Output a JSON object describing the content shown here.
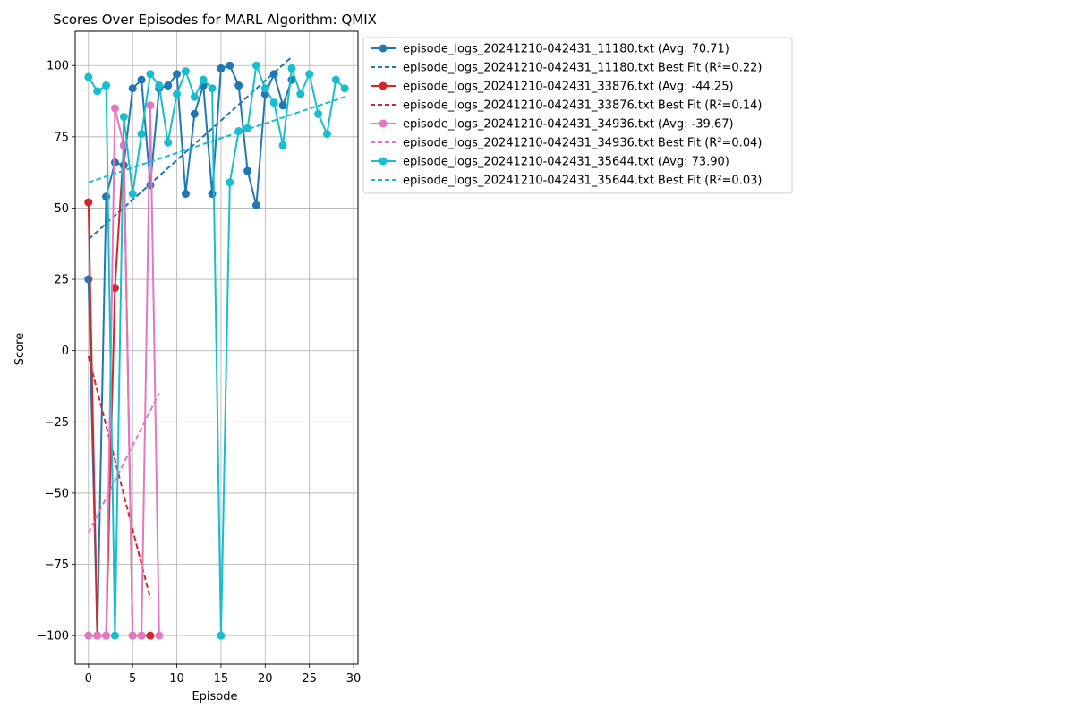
{
  "chart_data": {
    "type": "line",
    "title": "Scores Over Episodes for MARL Algorithm: QMIX",
    "xlabel": "Episode",
    "ylabel": "Score",
    "xlim": [
      -1.5,
      30.5
    ],
    "ylim": [
      -110,
      112
    ],
    "xticks": [
      0,
      5,
      10,
      15,
      20,
      25,
      30
    ],
    "yticks": [
      -100,
      -75,
      -50,
      -25,
      0,
      25,
      50,
      75,
      100
    ],
    "grid": true,
    "legend_position": "outside top-right",
    "series": [
      {
        "name": "episode_logs_20241210-042431_11180.txt (Avg: 70.71)",
        "color": "#1f77b4",
        "x": [
          0,
          1,
          2,
          3,
          4,
          5,
          6,
          7,
          8,
          9,
          10,
          11,
          12,
          13,
          14,
          15,
          16,
          17,
          18,
          19,
          20,
          21,
          22,
          23
        ],
        "y": [
          25,
          -100,
          54,
          66,
          65,
          92,
          95,
          58,
          92,
          93,
          97,
          55,
          83,
          93,
          55,
          99,
          100,
          93,
          63,
          51,
          90,
          97,
          86,
          95
        ],
        "fit": {
          "label": "episode_logs_20241210-042431_11180.txt Best Fit (R²=0.22)",
          "x": [
            0,
            23
          ],
          "y": [
            39,
            103
          ]
        }
      },
      {
        "name": "episode_logs_20241210-042431_33876.txt (Avg: -44.25)",
        "color": "#d62728",
        "x": [
          0,
          1,
          2,
          3,
          4,
          5,
          6,
          7
        ],
        "y": [
          52,
          -100,
          -100,
          22,
          72,
          -100,
          -100,
          -100
        ],
        "fit": {
          "label": "episode_logs_20241210-042431_33876.txt Best Fit (R²=0.14)",
          "x": [
            0,
            7
          ],
          "y": [
            -2,
            -87
          ]
        }
      },
      {
        "name": "episode_logs_20241210-042431_34936.txt (Avg: -39.67)",
        "color": "#e377c2",
        "x": [
          0,
          1,
          2,
          3,
          4,
          5,
          6,
          7,
          8
        ],
        "y": [
          -100,
          -100,
          -100,
          85,
          72,
          -100,
          -100,
          86,
          -100
        ],
        "fit": {
          "label": "episode_logs_20241210-042431_34936.txt Best Fit (R²=0.04)",
          "x": [
            0,
            8
          ],
          "y": [
            -64,
            -15
          ]
        }
      },
      {
        "name": "episode_logs_20241210-042431_35644.txt (Avg: 73.90)",
        "color": "#17becf",
        "x": [
          0,
          1,
          2,
          3,
          4,
          5,
          6,
          7,
          8,
          9,
          10,
          11,
          12,
          13,
          14,
          15,
          16,
          17,
          18,
          19,
          20,
          21,
          22,
          23,
          24,
          25,
          26,
          27,
          28,
          29
        ],
        "y": [
          96,
          91,
          93,
          -100,
          82,
          55,
          76,
          97,
          93,
          73,
          90,
          98,
          89,
          95,
          92,
          -100,
          59,
          77,
          78,
          100,
          92,
          87,
          72,
          99,
          90,
          97,
          83,
          76,
          95,
          92
        ],
        "fit": {
          "label": "episode_logs_20241210-042431_35644.txt Best Fit (R²=0.03)",
          "x": [
            0,
            29
          ],
          "y": [
            59,
            89
          ]
        }
      }
    ]
  }
}
